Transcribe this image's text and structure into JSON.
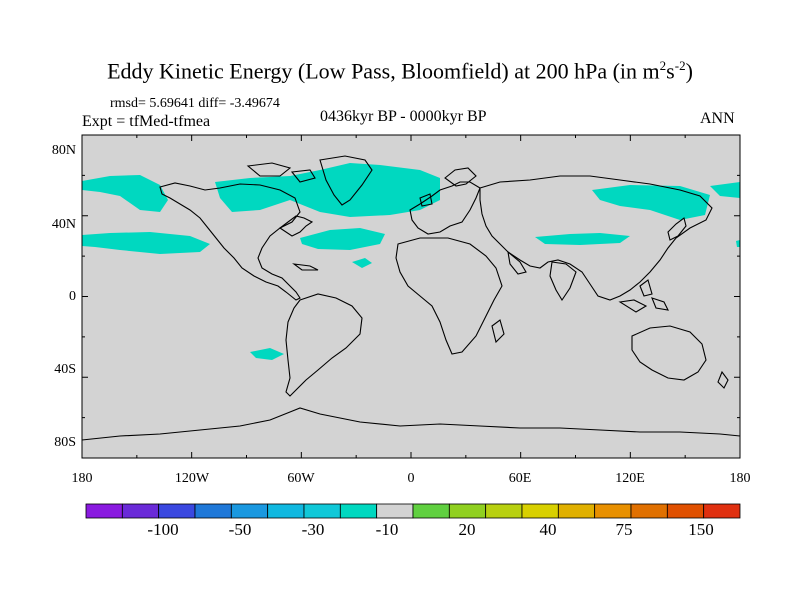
{
  "title": {
    "main": "Eddy Kinetic Energy (Low Pass, Bloomfield) at 200 hPa (in m",
    "sup1": "2",
    "mid": "s",
    "sup2": "-2",
    "end": ")"
  },
  "stats": "rmsd= 5.69641 diff= -3.49674",
  "expt": "Expt = tfMed-tfmea",
  "period": "0436kyr BP - 0000kyr BP",
  "season": "ANN",
  "map": {
    "lat_ticks": [
      "80N",
      "40N",
      "0",
      "40S",
      "80S"
    ],
    "lon_ticks": [
      "180",
      "120W",
      "60W",
      "0",
      "60E",
      "120E",
      "180"
    ],
    "land_color": "#000000",
    "background_color": "#d3d3d3",
    "anomaly_color": "#00d8c0"
  },
  "colorbar": {
    "colors": [
      "#8a1ae0",
      "#6a2ad8",
      "#3a48e0",
      "#1f78d8",
      "#1a98e0",
      "#10b8e0",
      "#10c8d8",
      "#00d8c0",
      "#d3d3d3",
      "#60d040",
      "#90d020",
      "#b8d010",
      "#d8d000",
      "#e0b000",
      "#e89000",
      "#e07000",
      "#e05000",
      "#e03010"
    ],
    "labels": [
      "-100",
      "-50",
      "-30",
      "-10",
      "20",
      "40",
      "75",
      "150"
    ]
  }
}
